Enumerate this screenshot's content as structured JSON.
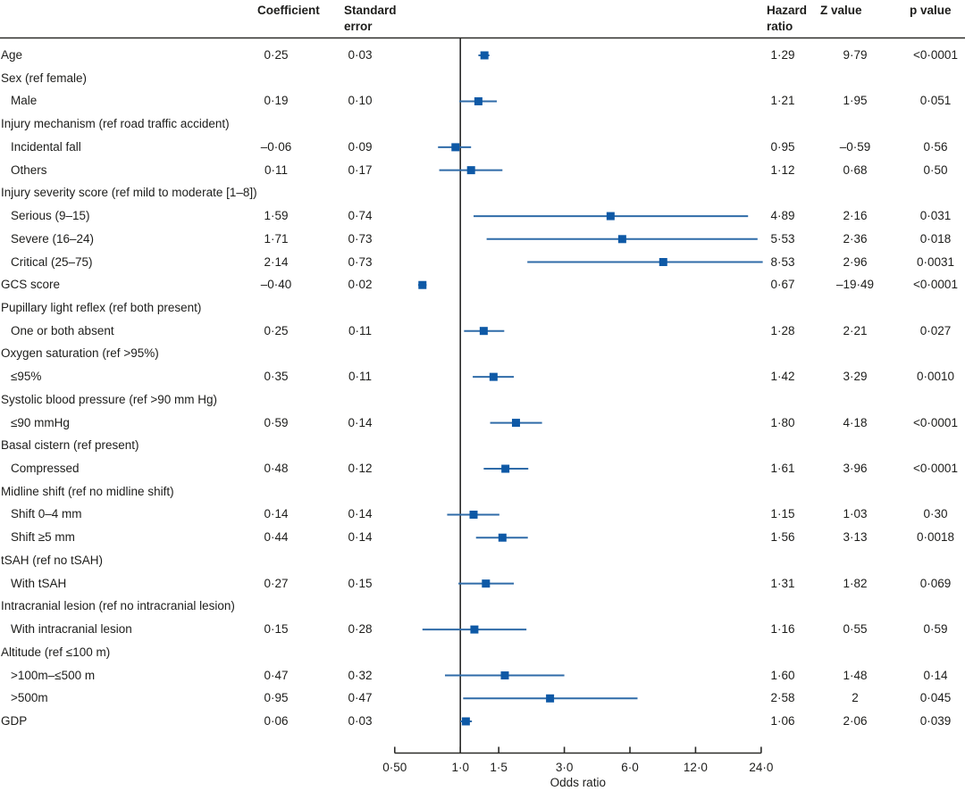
{
  "figure": {
    "header": {
      "coefficient": "Coefficient",
      "standard_error": "Standard error",
      "hazard_ratio": "Hazard ratio",
      "z_value": "Z value",
      "p_value": "p value"
    }
  },
  "chart_data": {
    "type": "forest",
    "title": "",
    "x_axis": {
      "title": "Odds ratio",
      "scale": "log2",
      "tick_labels": [
        "0·50",
        "1·0",
        "1·5",
        "3·0",
        "6·0",
        "12·0",
        "24·0"
      ],
      "tick_values": [
        0.5,
        1.0,
        1.5,
        3.0,
        6.0,
        12.0,
        24.0
      ],
      "range": [
        0.5,
        24.0
      ],
      "reference_value": 1.0
    },
    "columns": [
      "Coefficient",
      "Standard error",
      "Hazard ratio",
      "Z value",
      "p value"
    ],
    "rows": [
      {
        "label": "Age",
        "indent": 0,
        "group": false,
        "coefficient": "0·25",
        "se": "0·03",
        "hr": "1·29",
        "z": "9·79",
        "p": "<0·0001",
        "or": 1.29,
        "ci": [
          1.21,
          1.36
        ]
      },
      {
        "label": "Sex (ref female)",
        "indent": 0,
        "group": true
      },
      {
        "label": "Male",
        "indent": 1,
        "group": false,
        "coefficient": "0·19",
        "se": "0·10",
        "hr": "1·21",
        "z": "1·95",
        "p": "0·051",
        "or": 1.21,
        "ci": [
          0.99,
          1.47
        ]
      },
      {
        "label": "Injury mechanism (ref road traffic accident)",
        "indent": 0,
        "group": true
      },
      {
        "label": "Incidental fall",
        "indent": 1,
        "group": false,
        "coefficient": "–0·06",
        "se": "0·09",
        "hr": "0·95",
        "z": "–0·59",
        "p": "0·56",
        "or": 0.95,
        "ci": [
          0.79,
          1.12
        ]
      },
      {
        "label": "Others",
        "indent": 1,
        "group": false,
        "coefficient": "0·11",
        "se": "0·17",
        "hr": "1·12",
        "z": "0·68",
        "p": "0·50",
        "or": 1.12,
        "ci": [
          0.8,
          1.56
        ]
      },
      {
        "label": "Injury severity score (ref mild to moderate [1–8])",
        "indent": 0,
        "group": true
      },
      {
        "label": "Serious (9–15)",
        "indent": 1,
        "group": false,
        "coefficient": "1·59",
        "se": "0·74",
        "hr": "4·89",
        "z": "2·16",
        "p": "0·031",
        "or": 4.89,
        "ci": [
          1.15,
          20.9
        ]
      },
      {
        "label": "Severe (16–24)",
        "indent": 1,
        "group": false,
        "coefficient": "1·71",
        "se": "0·73",
        "hr": "5·53",
        "z": "2·36",
        "p": "0·018",
        "or": 5.53,
        "ci": [
          1.32,
          23.1
        ]
      },
      {
        "label": "Critical (25–75)",
        "indent": 1,
        "group": false,
        "coefficient": "2·14",
        "se": "0·73",
        "hr": "8·53",
        "z": "2·96",
        "p": "0·0031",
        "or": 8.53,
        "ci": [
          2.03,
          24.4
        ]
      },
      {
        "label": "GCS score",
        "indent": 0,
        "group": false,
        "coefficient": "–0·40",
        "se": "0·02",
        "hr": "0·67",
        "z": "–19·49",
        "p": "<0·0001",
        "or": 0.67,
        "ci": [
          0.64,
          0.7
        ]
      },
      {
        "label": "Pupillary light reflex (ref both present)",
        "indent": 0,
        "group": true
      },
      {
        "label": "One or both absent",
        "indent": 1,
        "group": false,
        "coefficient": "0·25",
        "se": "0·11",
        "hr": "1·28",
        "z": "2·21",
        "p": "0·027",
        "or": 1.28,
        "ci": [
          1.04,
          1.59
        ]
      },
      {
        "label": "Oxygen saturation (ref >95%)",
        "indent": 0,
        "group": true
      },
      {
        "label": "≤95%",
        "indent": 1,
        "group": false,
        "coefficient": "0·35",
        "se": "0·11",
        "hr": "1·42",
        "z": "3·29",
        "p": "0·0010",
        "or": 1.42,
        "ci": [
          1.14,
          1.76
        ]
      },
      {
        "label": "Systolic blood pressure (ref >90 mm Hg)",
        "indent": 0,
        "group": true
      },
      {
        "label": "≤90 mmHg",
        "indent": 1,
        "group": false,
        "coefficient": "0·59",
        "se": "0·14",
        "hr": "1·80",
        "z": "4·18",
        "p": "<0·0001",
        "or": 1.8,
        "ci": [
          1.37,
          2.37
        ]
      },
      {
        "label": "Basal cistern (ref present)",
        "indent": 0,
        "group": true
      },
      {
        "label": "Compressed",
        "indent": 1,
        "group": false,
        "coefficient": "0·48",
        "se": "0·12",
        "hr": "1·61",
        "z": "3·96",
        "p": "<0·0001",
        "or": 1.61,
        "ci": [
          1.28,
          2.05
        ]
      },
      {
        "label": "Midline shift (ref no midline shift)",
        "indent": 0,
        "group": true
      },
      {
        "label": "Shift 0–4 mm",
        "indent": 1,
        "group": false,
        "coefficient": "0·14",
        "se": "0·14",
        "hr": "1·15",
        "z": "1·03",
        "p": "0·30",
        "or": 1.15,
        "ci": [
          0.87,
          1.51
        ]
      },
      {
        "label": "Shift ≥5 mm",
        "indent": 1,
        "group": false,
        "coefficient": "0·44",
        "se": "0·14",
        "hr": "1·56",
        "z": "3·13",
        "p": "0·0018",
        "or": 1.56,
        "ci": [
          1.18,
          2.04
        ]
      },
      {
        "label": "tSAH (ref no tSAH)",
        "indent": 0,
        "group": true
      },
      {
        "label": "With tSAH",
        "indent": 1,
        "group": false,
        "coefficient": "0·27",
        "se": "0·15",
        "hr": "1·31",
        "z": "1·82",
        "p": "0·069",
        "or": 1.31,
        "ci": [
          0.98,
          1.76
        ]
      },
      {
        "label": "Intracranial lesion (ref no intracranial lesion)",
        "indent": 0,
        "group": true
      },
      {
        "label": "With intracranial lesion",
        "indent": 1,
        "group": false,
        "coefficient": "0·15",
        "se": "0·28",
        "hr": "1·16",
        "z": "0·55",
        "p": "0·59",
        "or": 1.16,
        "ci": [
          0.67,
          2.01
        ]
      },
      {
        "label": "Altitude (ref ≤100 m)",
        "indent": 0,
        "group": true
      },
      {
        "label": ">100m–≤500 m",
        "indent": 1,
        "group": false,
        "coefficient": "0·47",
        "se": "0·32",
        "hr": "1·60",
        "z": "1·48",
        "p": "0·14",
        "or": 1.6,
        "ci": [
          0.85,
          3.0
        ]
      },
      {
        "label": ">500m",
        "indent": 1,
        "group": false,
        "coefficient": "0·95",
        "se": "0·47",
        "hr": "2·58",
        "z": "2",
        "p": "0·045",
        "or": 2.58,
        "ci": [
          1.03,
          6.5
        ]
      },
      {
        "label": "GDP",
        "indent": 0,
        "group": false,
        "coefficient": "0·06",
        "se": "0·03",
        "hr": "1·06",
        "z": "2·06",
        "p": "0·039",
        "or": 1.06,
        "ci": [
          1.0,
          1.13
        ]
      }
    ]
  },
  "colors": {
    "marker_blue": "#0e59a6",
    "ci_line_blue": "#2f6ba8",
    "axis_black": "#2a2a28",
    "text": "#1d1d1b"
  }
}
